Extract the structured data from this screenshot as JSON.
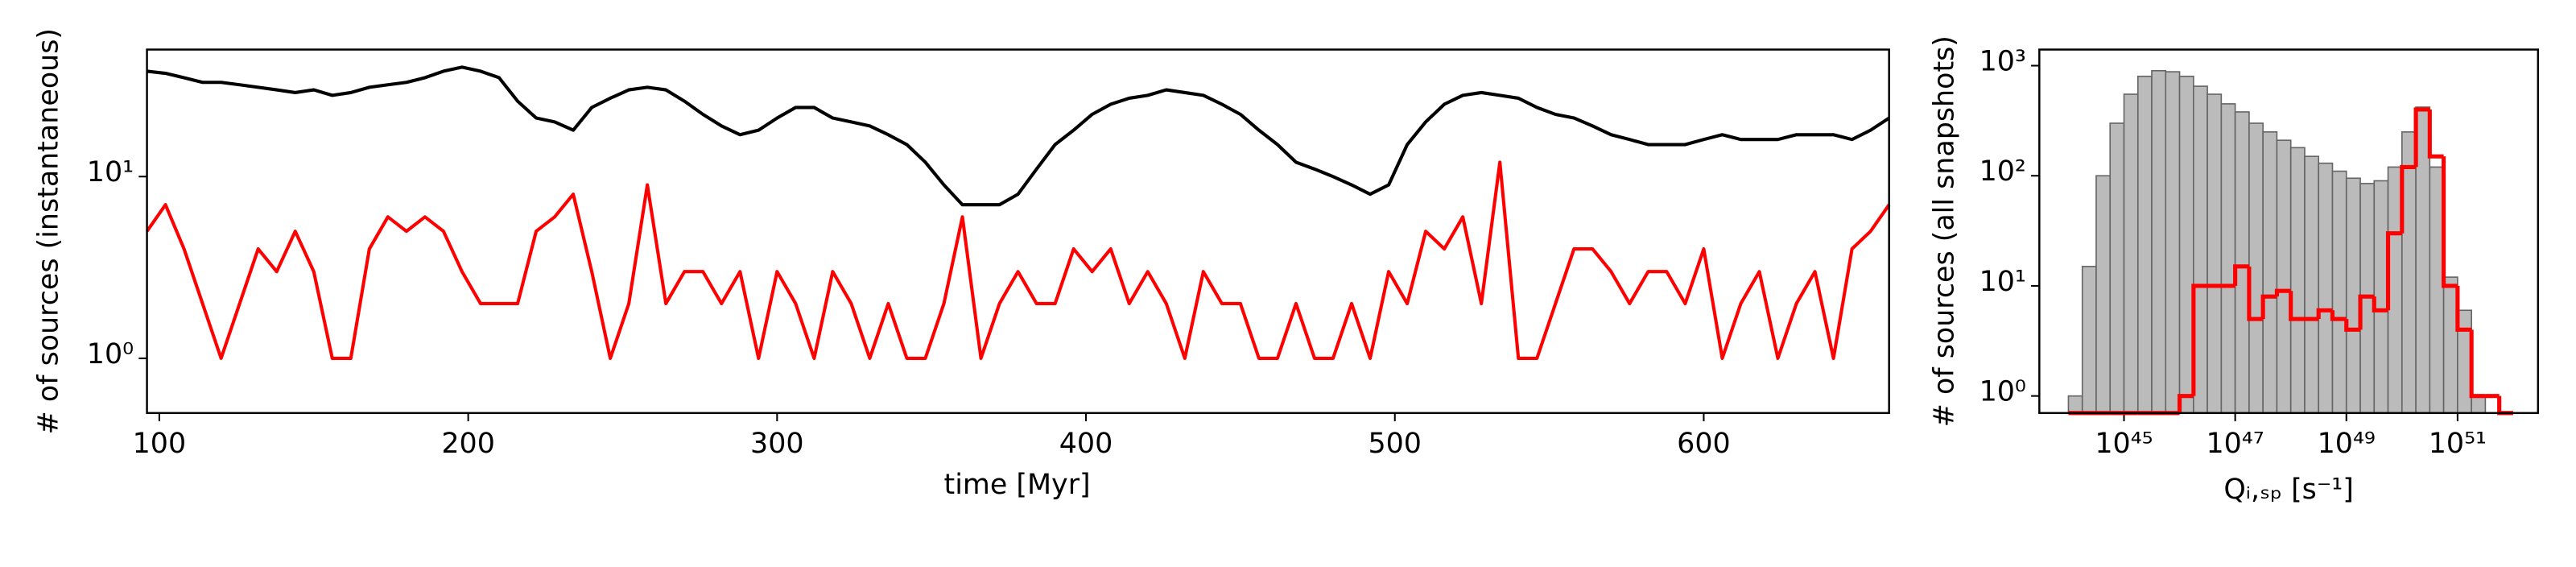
{
  "chart_data": [
    {
      "type": "line",
      "xlabel": "time [Myr]",
      "ylabel": "# of sources (instantaneous)",
      "xlim": [
        96,
        660
      ],
      "ylim": [
        0.5,
        50
      ],
      "yscale": "log",
      "xticks": [
        100,
        200,
        300,
        400,
        500,
        600
      ],
      "yticks": [
        {
          "value": 1,
          "label": "10⁰"
        },
        {
          "value": 10,
          "label": "10¹"
        }
      ],
      "x": [
        96,
        102,
        108,
        114,
        120,
        126,
        132,
        138,
        144,
        150,
        156,
        162,
        168,
        174,
        180,
        186,
        192,
        198,
        204,
        210,
        216,
        222,
        228,
        234,
        240,
        246,
        252,
        258,
        264,
        270,
        276,
        282,
        288,
        294,
        300,
        306,
        312,
        318,
        324,
        330,
        336,
        342,
        348,
        354,
        360,
        366,
        372,
        378,
        384,
        390,
        396,
        402,
        408,
        414,
        420,
        426,
        432,
        438,
        444,
        450,
        456,
        462,
        468,
        474,
        480,
        486,
        492,
        498,
        504,
        510,
        516,
        522,
        528,
        534,
        540,
        546,
        552,
        558,
        564,
        570,
        576,
        582,
        588,
        594,
        600,
        606,
        612,
        618,
        624,
        630,
        636,
        642,
        648,
        654,
        660
      ],
      "series": [
        {
          "color": "#000000",
          "values": [
            38,
            37,
            35,
            33,
            33,
            32,
            31,
            30,
            29,
            30,
            28,
            29,
            31,
            32,
            33,
            35,
            38,
            40,
            38,
            35,
            26,
            21,
            20,
            18,
            24,
            27,
            30,
            31,
            30,
            26,
            22,
            19,
            17,
            18,
            21,
            24,
            24,
            21,
            20,
            19,
            17,
            15,
            12,
            9,
            7,
            7,
            7,
            8,
            11,
            15,
            18,
            22,
            25,
            27,
            28,
            30,
            29,
            28,
            25,
            22,
            18,
            15,
            12,
            11,
            10,
            9,
            8,
            9,
            15,
            20,
            25,
            28,
            29,
            28,
            27,
            24,
            22,
            21,
            19,
            17,
            16,
            15,
            15,
            15,
            16,
            17,
            16,
            16,
            16,
            17,
            17,
            17,
            16,
            18,
            21
          ]
        },
        {
          "color": "#ff0000",
          "values": [
            5,
            7,
            4,
            2,
            1,
            2,
            4,
            3,
            5,
            3,
            1,
            1,
            4,
            6,
            5,
            6,
            5,
            3,
            2,
            2,
            2,
            5,
            6,
            8,
            3,
            1,
            2,
            9,
            2,
            3,
            3,
            2,
            3,
            1,
            3,
            2,
            1,
            3,
            2,
            1,
            2,
            1,
            1,
            2,
            6,
            1,
            2,
            3,
            2,
            2,
            4,
            3,
            4,
            2,
            3,
            2,
            1,
            3,
            2,
            2,
            1,
            1,
            2,
            1,
            1,
            2,
            1,
            3,
            2,
            5,
            4,
            6,
            2,
            12,
            1,
            1,
            2,
            4,
            4,
            3,
            2,
            3,
            3,
            2,
            4,
            1,
            2,
            3,
            1,
            2,
            3,
            1,
            4,
            5,
            7
          ]
        }
      ]
    },
    {
      "type": "histogram",
      "xlabel": "Qᵢ,ₛₚ [s⁻¹]",
      "ylabel": "# of sources (all snapshots)",
      "xlim": [
        3e+43,
        2.8e+52
      ],
      "ylim": [
        0.7,
        1400
      ],
      "xscale": "log",
      "yscale": "log",
      "xticks": [
        {
          "value": 1e+45,
          "label": "10⁴⁵"
        },
        {
          "value": 1e+47,
          "label": "10⁴⁷"
        },
        {
          "value": 1e+49,
          "label": "10⁴⁹"
        },
        {
          "value": 1e+51,
          "label": "10⁵¹"
        }
      ],
      "yticks": [
        {
          "value": 1,
          "label": "10⁰"
        },
        {
          "value": 10,
          "label": "10¹"
        },
        {
          "value": 100,
          "label": "10²"
        },
        {
          "value": 1000,
          "label": "10³"
        }
      ],
      "bins": [
        1e+44,
        1.78e+44,
        3.16e+44,
        5.62e+44,
        1e+45,
        1.78e+45,
        3.16e+45,
        5.62e+45,
        1e+46,
        1.78e+46,
        3.16e+46,
        5.62e+46,
        1e+47,
        1.78e+47,
        3.16e+47,
        5.62e+47,
        1e+48,
        1.78e+48,
        3.16e+48,
        5.62e+48,
        1e+49,
        1.78e+49,
        3.16e+49,
        5.62e+49,
        1e+50,
        1.78e+50,
        3.16e+50,
        5.62e+50,
        1e+51,
        1.78e+51,
        3.16e+51,
        5.62e+51,
        1e+52
      ],
      "series": [
        {
          "color": "#bbbbbb",
          "edgecolor": "#666666",
          "histtype": "stepfilled",
          "values": [
            1,
            15,
            100,
            300,
            550,
            800,
            900,
            880,
            800,
            650,
            550,
            450,
            380,
            300,
            250,
            210,
            180,
            150,
            130,
            110,
            95,
            85,
            90,
            120,
            250,
            420,
            120,
            12,
            6,
            1,
            0,
            0
          ]
        },
        {
          "color": "#ff0000",
          "histtype": "step",
          "values": [
            0,
            0,
            0,
            0,
            0,
            0,
            0,
            0,
            1,
            10,
            10,
            10,
            15,
            5,
            8,
            9,
            5,
            5,
            6,
            5,
            4,
            8,
            6,
            30,
            120,
            400,
            150,
            10,
            4,
            1,
            1,
            0
          ]
        }
      ]
    }
  ]
}
